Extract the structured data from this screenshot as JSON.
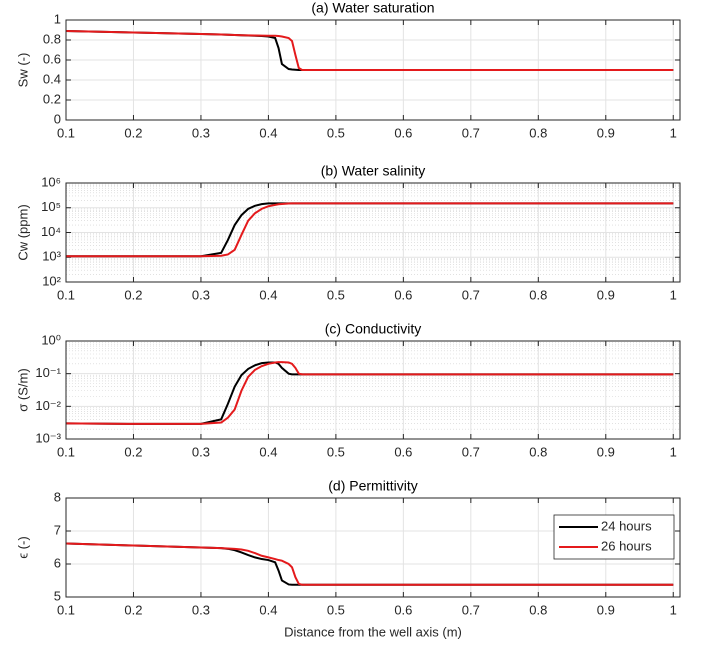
{
  "chart_data": [
    {
      "type": "line",
      "title": "(a) Water saturation",
      "y_label": "Sw (-)",
      "x": [
        0.1,
        0.2,
        0.3,
        0.33,
        0.34,
        0.35,
        0.36,
        0.37,
        0.38,
        0.39,
        0.4,
        0.41,
        0.415,
        0.42,
        0.43,
        0.435,
        0.44,
        0.445,
        0.45,
        0.5,
        0.6,
        0.7,
        0.8,
        0.9,
        1.0
      ],
      "series": [
        {
          "name": "24 hours",
          "color": "#000000",
          "values": [
            0.89,
            0.875,
            0.86,
            0.855,
            0.853,
            0.85,
            0.848,
            0.845,
            0.843,
            0.84,
            0.835,
            0.82,
            0.72,
            0.56,
            0.51,
            0.505,
            0.503,
            0.5,
            0.5,
            0.5,
            0.5,
            0.5,
            0.5,
            0.5,
            0.5
          ]
        },
        {
          "name": "26 hours",
          "color": "#e41a1c",
          "values": [
            0.89,
            0.875,
            0.86,
            0.855,
            0.853,
            0.85,
            0.848,
            0.846,
            0.845,
            0.844,
            0.843,
            0.842,
            0.84,
            0.835,
            0.82,
            0.79,
            0.65,
            0.52,
            0.5,
            0.5,
            0.5,
            0.5,
            0.5,
            0.5,
            0.5
          ]
        }
      ],
      "xlim": [
        0.1,
        1.01
      ],
      "xticks": [
        0.1,
        0.2,
        0.3,
        0.4,
        0.5,
        0.6,
        0.7,
        0.8,
        0.9,
        1
      ],
      "ylim": [
        0,
        1
      ],
      "yticks": [
        0,
        0.2,
        0.4,
        0.6,
        0.8,
        1
      ],
      "grid": true
    },
    {
      "type": "line",
      "title": "(b) Water salinity",
      "y_label": "Cw (ppm)",
      "y_scale": "log",
      "x": [
        0.1,
        0.2,
        0.3,
        0.33,
        0.34,
        0.35,
        0.36,
        0.37,
        0.38,
        0.39,
        0.4,
        0.41,
        0.415,
        0.42,
        0.43,
        0.435,
        0.44,
        0.445,
        0.45,
        0.5,
        0.6,
        0.7,
        0.8,
        0.9,
        1.0
      ],
      "series": [
        {
          "name": "24 hours",
          "color": "#000000",
          "values": [
            1100,
            1100,
            1100,
            1500,
            5000,
            20000,
            50000,
            90000,
            120000,
            140000,
            150000,
            150000,
            150000,
            150000,
            150000,
            150000,
            150000,
            150000,
            150000,
            150000,
            150000,
            150000,
            150000,
            150000,
            150000
          ]
        },
        {
          "name": "26 hours",
          "color": "#e41a1c",
          "values": [
            1100,
            1100,
            1100,
            1150,
            1300,
            2000,
            8000,
            30000,
            60000,
            90000,
            115000,
            130000,
            138000,
            142000,
            148000,
            150000,
            150000,
            150000,
            150000,
            150000,
            150000,
            150000,
            150000,
            150000,
            150000
          ]
        }
      ],
      "xlim": [
        0.1,
        1.01
      ],
      "xticks": [
        0.1,
        0.2,
        0.3,
        0.4,
        0.5,
        0.6,
        0.7,
        0.8,
        0.9,
        1
      ],
      "ylim": [
        100,
        1000000
      ],
      "yticks": [
        {
          "value": 100,
          "label": "10²"
        },
        {
          "value": 1000,
          "label": "10³"
        },
        {
          "value": 10000,
          "label": "10⁴"
        },
        {
          "value": 100000,
          "label": "10⁵"
        },
        {
          "value": 1000000,
          "label": "10⁶"
        }
      ],
      "grid": true,
      "minor_grid": true
    },
    {
      "type": "line",
      "title": "(c) Conductivity",
      "y_label": "σ (S/m)",
      "y_scale": "log",
      "x": [
        0.1,
        0.2,
        0.3,
        0.33,
        0.34,
        0.35,
        0.36,
        0.37,
        0.38,
        0.39,
        0.4,
        0.41,
        0.415,
        0.42,
        0.43,
        0.435,
        0.44,
        0.445,
        0.45,
        0.5,
        0.6,
        0.7,
        0.8,
        0.9,
        1.0
      ],
      "series": [
        {
          "name": "24 hours",
          "color": "#000000",
          "values": [
            0.003,
            0.0029,
            0.0029,
            0.004,
            0.012,
            0.04,
            0.09,
            0.14,
            0.18,
            0.21,
            0.22,
            0.22,
            0.2,
            0.15,
            0.1,
            0.095,
            0.095,
            0.095,
            0.095,
            0.095,
            0.095,
            0.095,
            0.095,
            0.095,
            0.095
          ]
        },
        {
          "name": "26 hours",
          "color": "#e41a1c",
          "values": [
            0.003,
            0.0029,
            0.0029,
            0.0032,
            0.0045,
            0.008,
            0.03,
            0.08,
            0.13,
            0.17,
            0.2,
            0.22,
            0.225,
            0.225,
            0.22,
            0.2,
            0.15,
            0.1,
            0.095,
            0.095,
            0.095,
            0.095,
            0.095,
            0.095,
            0.095
          ]
        }
      ],
      "xlim": [
        0.1,
        1.01
      ],
      "xticks": [
        0.1,
        0.2,
        0.3,
        0.4,
        0.5,
        0.6,
        0.7,
        0.8,
        0.9,
        1
      ],
      "ylim": [
        0.001,
        1
      ],
      "yticks": [
        {
          "value": 0.001,
          "label": "10⁻³"
        },
        {
          "value": 0.01,
          "label": "10⁻²"
        },
        {
          "value": 0.1,
          "label": "10⁻¹"
        },
        {
          "value": 1,
          "label": "10⁰"
        }
      ],
      "grid": true,
      "minor_grid": true
    },
    {
      "type": "line",
      "title": "(d) Permittivity",
      "y_label": "ϵ (-)",
      "x_label": "Distance from the well axis (m)",
      "x": [
        0.1,
        0.2,
        0.3,
        0.33,
        0.34,
        0.35,
        0.36,
        0.37,
        0.38,
        0.39,
        0.4,
        0.41,
        0.415,
        0.42,
        0.43,
        0.435,
        0.44,
        0.445,
        0.45,
        0.5,
        0.6,
        0.7,
        0.8,
        0.9,
        1.0
      ],
      "series": [
        {
          "name": "24 hours",
          "color": "#000000",
          "values": [
            6.62,
            6.56,
            6.5,
            6.48,
            6.46,
            6.42,
            6.35,
            6.27,
            6.2,
            6.15,
            6.12,
            6.05,
            5.8,
            5.5,
            5.38,
            5.37,
            5.37,
            5.37,
            5.37,
            5.37,
            5.37,
            5.37,
            5.37,
            5.37,
            5.37
          ]
        },
        {
          "name": "26 hours",
          "color": "#e41a1c",
          "values": [
            6.62,
            6.56,
            6.5,
            6.48,
            6.47,
            6.46,
            6.44,
            6.4,
            6.33,
            6.25,
            6.2,
            6.15,
            6.12,
            6.1,
            6.0,
            5.9,
            5.6,
            5.4,
            5.37,
            5.37,
            5.37,
            5.37,
            5.37,
            5.37,
            5.37
          ]
        }
      ],
      "xlim": [
        0.1,
        1.01
      ],
      "xticks": [
        0.1,
        0.2,
        0.3,
        0.4,
        0.5,
        0.6,
        0.7,
        0.8,
        0.9,
        1
      ],
      "ylim": [
        5,
        8
      ],
      "yticks": [
        5,
        6,
        7,
        8
      ],
      "grid": true,
      "legend": "northeast"
    }
  ]
}
